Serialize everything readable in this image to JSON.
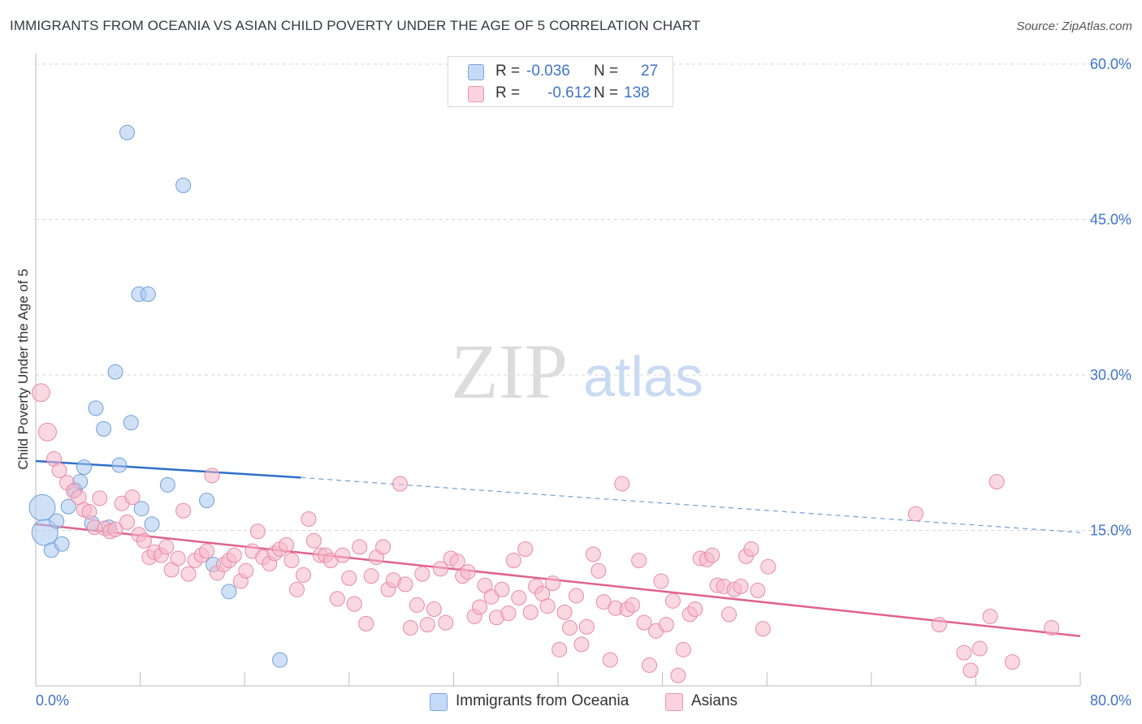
{
  "title": "IMMIGRANTS FROM OCEANIA VS ASIAN CHILD POVERTY UNDER THE AGE OF 5 CORRELATION CHART",
  "source": "Source: ZipAtlas.com",
  "watermark": {
    "zip": "ZIP",
    "atlas": "atlas"
  },
  "legend": {
    "rows": [
      {
        "r_label": "R =",
        "r_value": "-0.036",
        "n_label": "N =",
        "n_value": "27",
        "color": "#a9c8f0"
      },
      {
        "r_label": "R =",
        "r_value": "-0.612",
        "n_label": "N =",
        "n_value": "138",
        "color": "#f6b8cb"
      }
    ]
  },
  "bottom_legend": {
    "series1": "Immigrants from Oceania",
    "series2": "Asians"
  },
  "chart_data": {
    "type": "scatter",
    "xlabel": "",
    "ylabel": "Child Poverty Under the Age of 5",
    "xlim": [
      0,
      80
    ],
    "ylim": [
      0,
      60
    ],
    "x_tick_labels": [
      "0.0%",
      "80.0%"
    ],
    "y_tick_labels": [
      "15.0%",
      "30.0%",
      "45.0%",
      "60.0%"
    ],
    "y_ticks": [
      15,
      30,
      45,
      60
    ],
    "grid": "horizontal dashed",
    "legend_position": "top-center",
    "series": [
      {
        "name": "Immigrants from Oceania",
        "color": "#a9c8f0",
        "stroke": "#6f9fd8",
        "trend_color": "#2f6fca",
        "trend": {
          "x0": 0,
          "y0": 21.7,
          "x1": 20.3,
          "y1": 20.1,
          "dash_to_x": 80,
          "dash_to_y": 14.8
        },
        "points": [
          [
            0.5,
            17.2
          ],
          [
            0.7,
            14.8
          ],
          [
            1.2,
            13.1
          ],
          [
            1.6,
            15.9
          ],
          [
            2.0,
            13.7
          ],
          [
            2.5,
            17.3
          ],
          [
            3.0,
            18.9
          ],
          [
            3.4,
            19.7
          ],
          [
            3.7,
            21.1
          ],
          [
            4.3,
            15.7
          ],
          [
            4.6,
            26.8
          ],
          [
            5.2,
            24.8
          ],
          [
            5.6,
            15.3
          ],
          [
            6.1,
            30.3
          ],
          [
            6.4,
            21.3
          ],
          [
            7.0,
            53.4
          ],
          [
            7.3,
            25.4
          ],
          [
            7.9,
            37.8
          ],
          [
            8.1,
            17.1
          ],
          [
            8.6,
            37.8
          ],
          [
            8.9,
            15.6
          ],
          [
            10.1,
            19.4
          ],
          [
            11.3,
            48.3
          ],
          [
            13.1,
            17.9
          ],
          [
            13.6,
            11.7
          ],
          [
            14.8,
            9.1
          ],
          [
            18.7,
            2.5
          ]
        ]
      },
      {
        "name": "Asians",
        "color": "#f6b8cb",
        "stroke": "#e88aa6",
        "trend_color": "#e0628c",
        "trend": {
          "x0": 0,
          "y0": 15.6,
          "x1": 80,
          "y1": 4.8
        },
        "points": [
          [
            0.4,
            28.3
          ],
          [
            0.9,
            24.5
          ],
          [
            1.4,
            21.9
          ],
          [
            1.8,
            20.8
          ],
          [
            2.4,
            19.6
          ],
          [
            2.9,
            18.8
          ],
          [
            3.3,
            18.2
          ],
          [
            3.7,
            17.0
          ],
          [
            4.1,
            16.8
          ],
          [
            4.5,
            15.3
          ],
          [
            4.9,
            18.1
          ],
          [
            5.3,
            15.2
          ],
          [
            5.7,
            14.9
          ],
          [
            6.1,
            15.1
          ],
          [
            6.6,
            17.6
          ],
          [
            7.0,
            15.8
          ],
          [
            7.4,
            18.2
          ],
          [
            7.9,
            14.6
          ],
          [
            8.3,
            14.0
          ],
          [
            8.7,
            12.4
          ],
          [
            9.1,
            12.9
          ],
          [
            9.6,
            12.6
          ],
          [
            10.0,
            13.4
          ],
          [
            10.4,
            11.2
          ],
          [
            10.9,
            12.3
          ],
          [
            11.3,
            16.9
          ],
          [
            11.7,
            10.8
          ],
          [
            12.2,
            12.1
          ],
          [
            12.7,
            12.6
          ],
          [
            13.1,
            13.0
          ],
          [
            13.5,
            20.3
          ],
          [
            13.9,
            10.9
          ],
          [
            14.4,
            11.7
          ],
          [
            14.8,
            12.1
          ],
          [
            15.2,
            12.6
          ],
          [
            15.7,
            10.1
          ],
          [
            16.1,
            11.1
          ],
          [
            16.6,
            13.0
          ],
          [
            17.0,
            14.9
          ],
          [
            17.4,
            12.4
          ],
          [
            17.9,
            11.8
          ],
          [
            18.3,
            12.8
          ],
          [
            18.7,
            13.2
          ],
          [
            19.2,
            13.6
          ],
          [
            19.6,
            12.1
          ],
          [
            20.0,
            9.3
          ],
          [
            20.5,
            10.7
          ],
          [
            20.9,
            16.1
          ],
          [
            21.3,
            14.0
          ],
          [
            21.8,
            12.6
          ],
          [
            22.2,
            12.6
          ],
          [
            22.6,
            12.1
          ],
          [
            23.1,
            8.4
          ],
          [
            23.5,
            12.6
          ],
          [
            24.0,
            10.4
          ],
          [
            24.4,
            7.9
          ],
          [
            24.8,
            13.4
          ],
          [
            25.3,
            6.0
          ],
          [
            25.7,
            10.6
          ],
          [
            26.1,
            12.4
          ],
          [
            26.6,
            13.4
          ],
          [
            27.0,
            9.3
          ],
          [
            27.4,
            10.2
          ],
          [
            27.9,
            19.5
          ],
          [
            28.3,
            9.8
          ],
          [
            28.7,
            5.6
          ],
          [
            29.2,
            7.8
          ],
          [
            29.6,
            10.8
          ],
          [
            30.0,
            5.9
          ],
          [
            30.5,
            7.4
          ],
          [
            31.0,
            11.3
          ],
          [
            31.4,
            6.1
          ],
          [
            31.8,
            12.3
          ],
          [
            32.3,
            12.0
          ],
          [
            32.7,
            10.6
          ],
          [
            33.1,
            11.0
          ],
          [
            33.6,
            6.7
          ],
          [
            34.0,
            7.6
          ],
          [
            34.4,
            9.7
          ],
          [
            34.9,
            8.6
          ],
          [
            35.3,
            6.6
          ],
          [
            35.7,
            9.3
          ],
          [
            36.2,
            7.0
          ],
          [
            36.6,
            12.1
          ],
          [
            37.0,
            8.5
          ],
          [
            37.5,
            13.2
          ],
          [
            37.9,
            7.1
          ],
          [
            38.3,
            9.6
          ],
          [
            38.8,
            8.9
          ],
          [
            39.2,
            7.7
          ],
          [
            39.6,
            9.9
          ],
          [
            40.1,
            3.5
          ],
          [
            40.5,
            7.1
          ],
          [
            40.9,
            5.6
          ],
          [
            41.4,
            8.7
          ],
          [
            41.8,
            4.0
          ],
          [
            42.2,
            5.7
          ],
          [
            42.7,
            12.7
          ],
          [
            43.1,
            11.1
          ],
          [
            43.5,
            8.1
          ],
          [
            44.0,
            2.5
          ],
          [
            44.4,
            7.5
          ],
          [
            44.9,
            19.5
          ],
          [
            45.3,
            7.4
          ],
          [
            45.7,
            7.8
          ],
          [
            46.2,
            12.1
          ],
          [
            46.6,
            6.1
          ],
          [
            47.0,
            2.0
          ],
          [
            47.5,
            5.3
          ],
          [
            47.9,
            10.1
          ],
          [
            48.3,
            5.9
          ],
          [
            48.8,
            8.2
          ],
          [
            49.2,
            1.0
          ],
          [
            49.6,
            3.5
          ],
          [
            50.1,
            6.9
          ],
          [
            50.5,
            7.4
          ],
          [
            50.9,
            12.3
          ],
          [
            51.4,
            12.2
          ],
          [
            51.8,
            12.6
          ],
          [
            52.2,
            9.7
          ],
          [
            52.7,
            9.6
          ],
          [
            53.1,
            6.9
          ],
          [
            53.5,
            9.3
          ],
          [
            54.0,
            9.6
          ],
          [
            54.4,
            12.5
          ],
          [
            54.8,
            13.2
          ],
          [
            55.3,
            9.2
          ],
          [
            55.7,
            5.5
          ],
          [
            56.1,
            11.5
          ],
          [
            67.4,
            16.6
          ],
          [
            69.2,
            5.9
          ],
          [
            71.1,
            3.2
          ],
          [
            71.6,
            1.5
          ],
          [
            72.3,
            3.6
          ],
          [
            73.1,
            6.7
          ],
          [
            73.6,
            19.7
          ],
          [
            74.8,
            2.3
          ],
          [
            77.8,
            5.6
          ]
        ]
      }
    ]
  }
}
